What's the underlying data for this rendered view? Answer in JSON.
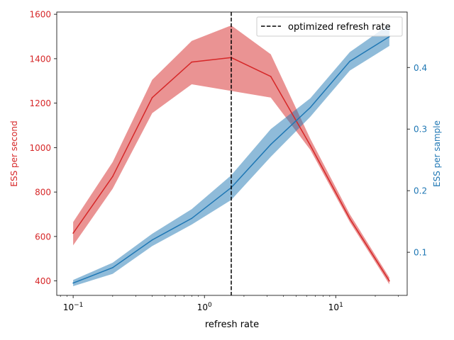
{
  "chart_data": {
    "type": "line",
    "title": "",
    "xlabel": "refresh rate",
    "xscale": "log",
    "xlim": [
      0.075,
      35
    ],
    "x_ticks": [
      {
        "value": 0.1,
        "base": "10",
        "exp": "−1"
      },
      {
        "value": 1,
        "base": "10",
        "exp": "0"
      },
      {
        "value": 10,
        "base": "10",
        "exp": "1"
      }
    ],
    "left_axis": {
      "label": "ESS per second",
      "color": "#d62728",
      "ylim": [
        335,
        1610
      ],
      "ticks": [
        "400",
        "600",
        "800",
        "1000",
        "1200",
        "1400",
        "1600"
      ]
    },
    "right_axis": {
      "label": "ESS per sample",
      "color": "#1f77b4",
      "ylim": [
        0.03,
        0.49
      ],
      "ticks": [
        "0.1",
        "0.2",
        "0.3",
        "0.4"
      ]
    },
    "x": [
      0.1,
      0.2,
      0.4,
      0.8,
      1.6,
      3.2,
      6.4,
      12.8,
      25.6
    ],
    "series": [
      {
        "name": "ESS per second",
        "axis": "left",
        "color": "#d62728",
        "values": [
          615,
          870,
          1225,
          1385,
          1405,
          1320,
          1010,
          680,
          400
        ],
        "lower": [
          560,
          815,
          1155,
          1285,
          1255,
          1225,
          990,
          665,
          385
        ],
        "upper": [
          665,
          935,
          1305,
          1480,
          1550,
          1420,
          1040,
          700,
          415
        ]
      },
      {
        "name": "ESS per sample",
        "axis": "right",
        "color": "#1f77b4",
        "values": [
          0.05,
          0.075,
          0.12,
          0.155,
          0.205,
          0.275,
          0.335,
          0.41,
          0.45
        ],
        "lower": [
          0.045,
          0.065,
          0.11,
          0.145,
          0.185,
          0.255,
          0.32,
          0.395,
          0.435
        ],
        "upper": [
          0.055,
          0.083,
          0.13,
          0.17,
          0.225,
          0.3,
          0.35,
          0.425,
          0.47
        ]
      }
    ],
    "vline": {
      "x": 1.6,
      "label": "optimized refresh rate",
      "color": "#000000"
    },
    "legend": {
      "placement": "top-right",
      "entries": [
        "optimized refresh rate"
      ]
    }
  }
}
